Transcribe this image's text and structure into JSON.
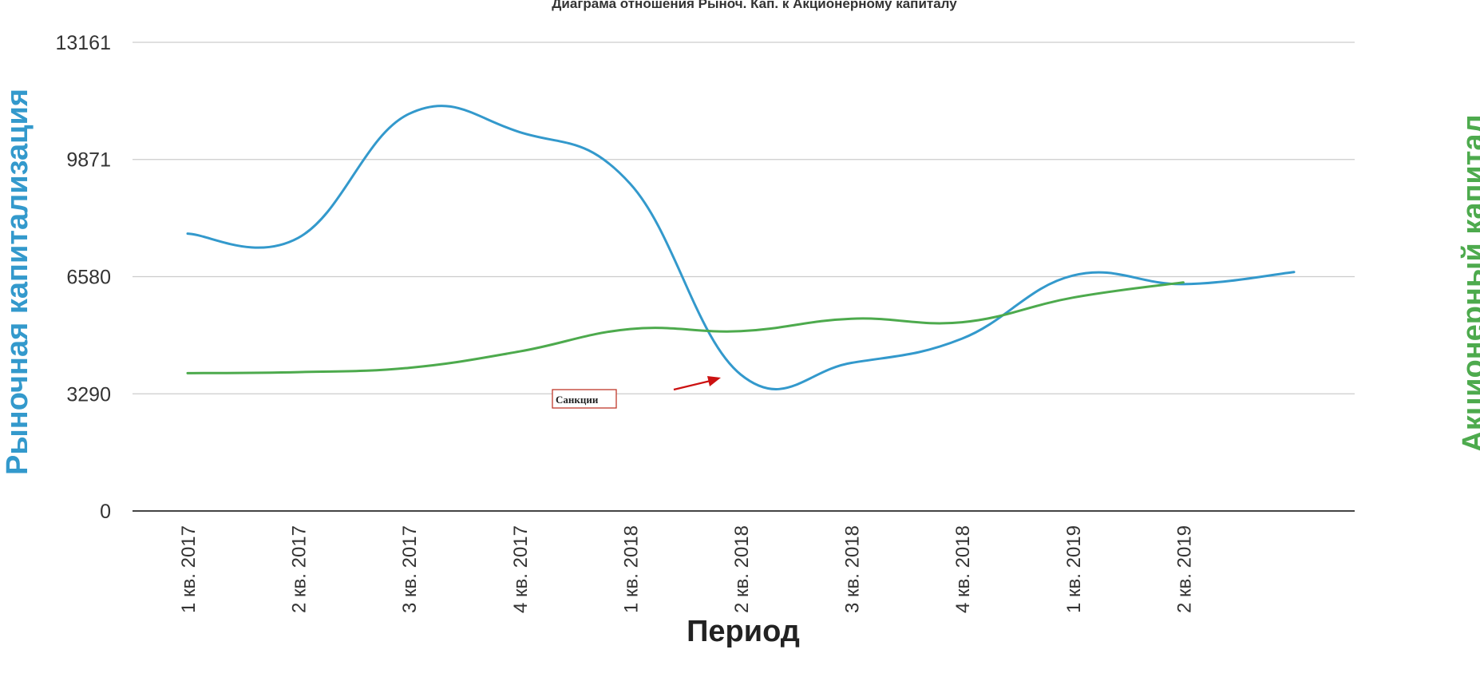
{
  "chart_data": {
    "type": "line",
    "title": "Диаграма отношения Рыноч. Кап. к Акционерному капиталу",
    "xlabel": "Период",
    "ylabel_left": "Рыночная капитализация",
    "ylabel_right": "Акционерный капитал",
    "ylim": [
      0,
      13161
    ],
    "yticks": [
      0,
      3290,
      6580,
      9871,
      13161
    ],
    "categories": [
      "1 кв. 2017",
      "2 кв. 2017",
      "3 кв. 2017",
      "4 кв. 2017",
      "1 кв. 2018",
      "2 кв. 2018",
      "3 кв. 2018",
      "4 кв. 2018",
      "1 кв. 2019",
      "2 кв. 2019",
      ""
    ],
    "grid": true,
    "legend": "none",
    "series": [
      {
        "color": "#3399cc",
        "values": [
          7790,
          7670,
          11150,
          10640,
          9190,
          3830,
          4160,
          4840,
          6610,
          6370,
          6710
        ]
      },
      {
        "color": "#4daa4d",
        "values": [
          3870,
          3900,
          4020,
          4480,
          5110,
          5050,
          5400,
          5300,
          5990,
          6420,
          null
        ]
      }
    ],
    "annotations": [
      {
        "text": "Санкции",
        "points_to": "2 кв. 2018"
      }
    ],
    "colors": {
      "left_axis_title": "#3399cc",
      "right_axis_title": "#4daa4d",
      "annotation": "#cc1111"
    }
  }
}
